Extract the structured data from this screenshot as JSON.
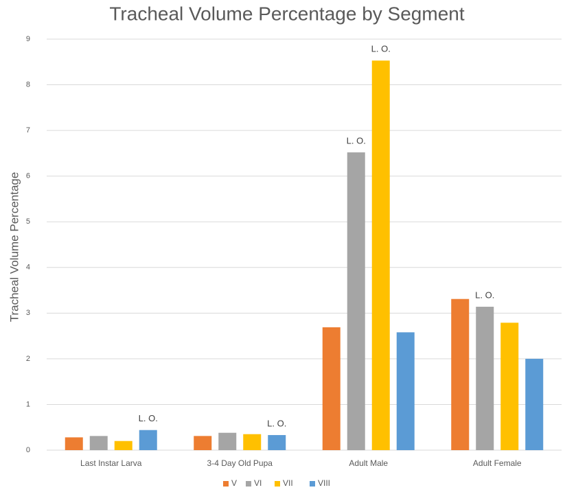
{
  "chart_data": {
    "type": "bar",
    "title": "Tracheal Volume Percentage by Segment",
    "y_label": "Tracheal Volume Percentage",
    "categories": [
      "Last Instar Larva",
      "3-4 Day Old Pupa",
      "Adult Male",
      "Adult Female"
    ],
    "series": [
      {
        "name": "V",
        "color": "#ed7d31",
        "values": [
          0.28,
          0.31,
          2.69,
          3.31
        ]
      },
      {
        "name": "VI",
        "color": "#a5a5a5",
        "values": [
          0.31,
          0.38,
          6.52,
          3.14
        ]
      },
      {
        "name": "VII",
        "color": "#ffc000",
        "values": [
          0.2,
          0.35,
          8.53,
          2.79
        ]
      },
      {
        "name": "VIII",
        "color": "#5b9bd5",
        "values": [
          0.44,
          0.33,
          2.58,
          2.0
        ]
      }
    ],
    "annotations": [
      {
        "text": "L. O.",
        "category": "Last Instar Larva",
        "series": "VIII"
      },
      {
        "text": "L. O.",
        "category": "3-4 Day Old Pupa",
        "series": "VIII"
      },
      {
        "text": "L. O.",
        "category": "Adult Male",
        "series": "VI"
      },
      {
        "text": "L. O.",
        "category": "Adult Male",
        "series": "VII"
      },
      {
        "text": "L. O.",
        "category": "Adult Female",
        "series": "VI"
      }
    ],
    "ylim": [
      0,
      9
    ],
    "yticks": [
      0,
      1,
      2,
      3,
      4,
      5,
      6,
      7,
      8,
      9
    ],
    "grid": true,
    "legend": "bottom"
  }
}
